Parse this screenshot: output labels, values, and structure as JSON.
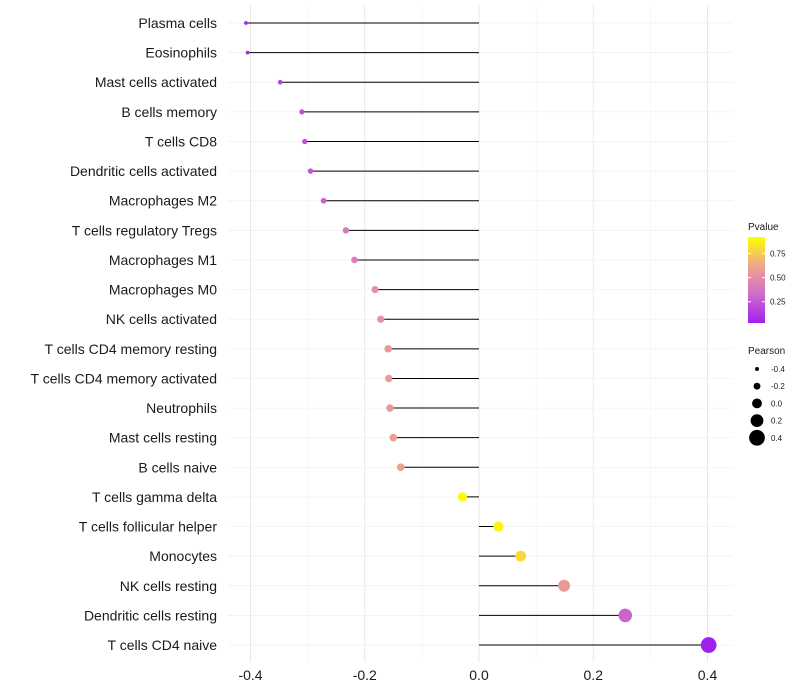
{
  "chart_data": {
    "type": "lollipop",
    "title": "",
    "xlabel": "",
    "ylabel": "",
    "xlim": [
      -0.44,
      0.44
    ],
    "xticks": [
      -0.4,
      -0.2,
      0.0,
      0.2,
      0.4
    ],
    "xtick_labels": [
      "-0.4",
      "-0.2",
      "0.0",
      "0.2",
      "0.4"
    ],
    "categories": [
      "Plasma cells",
      "Eosinophils",
      "Mast cells activated",
      "B cells memory",
      "T cells CD8",
      "Dendritic cells activated",
      "Macrophages M2",
      "T cells regulatory  Tregs",
      "Macrophages M1",
      "Macrophages M0",
      "NK cells activated",
      "T cells CD4 memory resting",
      "T cells CD4 memory activated",
      "Neutrophils",
      "Mast cells resting",
      "B cells naive",
      "T cells gamma delta",
      "T cells follicular helper",
      "Monocytes",
      "NK cells resting",
      "Dendritic cells resting",
      "T cells CD4 naive"
    ],
    "pearson": [
      -0.408,
      -0.405,
      -0.348,
      -0.31,
      -0.305,
      -0.295,
      -0.272,
      -0.233,
      -0.218,
      -0.182,
      -0.172,
      -0.159,
      -0.158,
      -0.156,
      -0.15,
      -0.137,
      -0.029,
      0.034,
      0.073,
      0.149,
      0.256,
      0.402
    ],
    "pvalue": [
      0.06,
      0.07,
      0.17,
      0.22,
      0.22,
      0.24,
      0.29,
      0.39,
      0.42,
      0.52,
      0.53,
      0.56,
      0.56,
      0.57,
      0.58,
      0.61,
      0.9,
      0.88,
      0.8,
      0.57,
      0.3,
      0.03
    ],
    "legend_color": {
      "title": "Pvalue",
      "ticks": [
        0.25,
        0.5,
        0.75
      ],
      "tick_labels": [
        "0.25",
        "0.50",
        "0.75"
      ],
      "range": [
        0.03,
        0.92
      ],
      "colors": [
        "#a020f0",
        "#d26fc6",
        "#f0a88a",
        "#ffff00"
      ]
    },
    "legend_size": {
      "title": "Pearson",
      "values": [
        -0.4,
        -0.2,
        0.0,
        0.2,
        0.4
      ],
      "labels": [
        "-0.4",
        "-0.2",
        "0.0",
        "0.2",
        "0.4"
      ]
    },
    "grid": true,
    "legend_position": "right"
  }
}
